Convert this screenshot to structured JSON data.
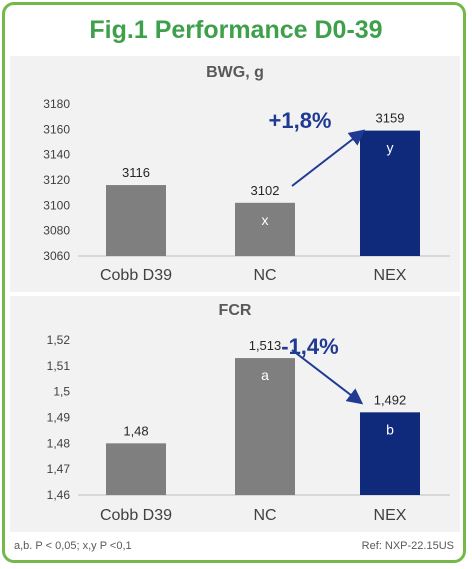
{
  "title": "Fig.1 Performance D0-39",
  "footnote_left": "a,b. P < 0,05; x,y P <0,1",
  "footnote_right": "Ref: NXP-22.15US",
  "colors": {
    "title": "#3ea04a",
    "border": "#74b84a",
    "gray_bar": "#7f7f7f",
    "nex_bar": "#0f2a7a",
    "annotation": "#1f3a93"
  },
  "chart_data": [
    {
      "type": "bar",
      "title": "BWG, g",
      "categories": [
        "Cobb D39",
        "NC",
        "NEX"
      ],
      "values": [
        3116,
        3102,
        3159
      ],
      "value_labels": [
        "3116",
        "3102",
        "3159"
      ],
      "bar_letters": [
        "",
        "x",
        "y"
      ],
      "ylim": [
        3060,
        3180
      ],
      "yticks": [
        3060,
        3080,
        3100,
        3120,
        3140,
        3160,
        3180
      ],
      "ytick_labels": [
        "3060",
        "3080",
        "3100",
        "3120",
        "3140",
        "3160",
        "3180"
      ],
      "annotation": "+1,8%",
      "grid": false
    },
    {
      "type": "bar",
      "title": "FCR",
      "categories": [
        "Cobb D39",
        "NC",
        "NEX"
      ],
      "values": [
        1.48,
        1.513,
        1.492
      ],
      "value_labels": [
        "1,48",
        "1,513",
        "1,492"
      ],
      "bar_letters": [
        "",
        "a",
        "b"
      ],
      "ylim": [
        1.46,
        1.52
      ],
      "yticks": [
        1.46,
        1.47,
        1.48,
        1.49,
        1.5,
        1.51,
        1.52
      ],
      "ytick_labels": [
        "1,46",
        "1,47",
        "1,48",
        "1,49",
        "1,5",
        "1,51",
        "1,52"
      ],
      "annotation": "-1,4%",
      "grid": false
    }
  ]
}
